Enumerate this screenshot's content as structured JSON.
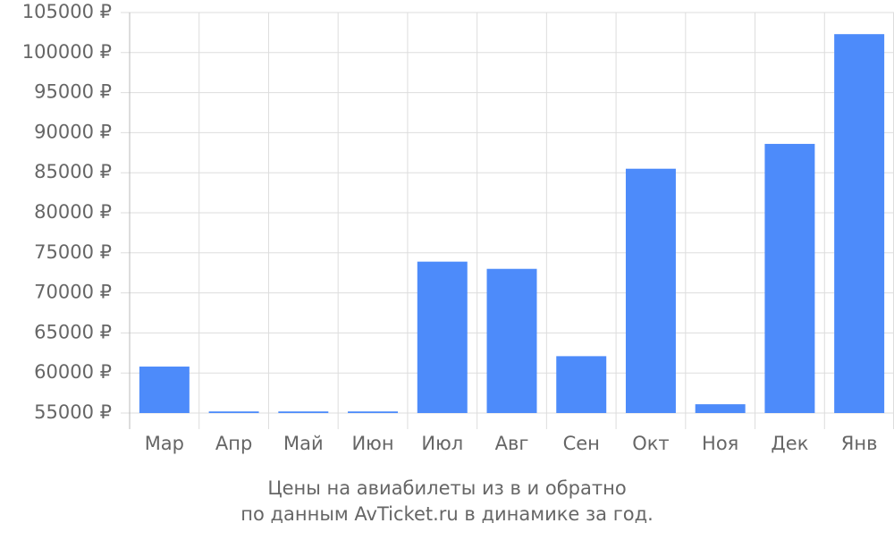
{
  "chart_data": {
    "type": "bar",
    "title": "Цены на авиабилеты из  в  и обратно",
    "subtitle": "по данным AvTicket.ru в динамике за год.",
    "categories": [
      "Мар",
      "Апр",
      "Май",
      "Июн",
      "Июл",
      "Авг",
      "Сен",
      "Окт",
      "Ноя",
      "Дек",
      "Янв"
    ],
    "values": [
      60800,
      55200,
      55200,
      55200,
      73900,
      73000,
      62100,
      85500,
      56100,
      88600,
      102300
    ],
    "color": "#4d8bfa",
    "ylim": [
      55000,
      105000
    ],
    "yticks": [
      {
        "value": 55000,
        "label": "55000 ₽"
      },
      {
        "value": 60000,
        "label": "60000 ₽"
      },
      {
        "value": 65000,
        "label": "65000 ₽"
      },
      {
        "value": 70000,
        "label": "70000 ₽"
      },
      {
        "value": 75000,
        "label": "75000 ₽"
      },
      {
        "value": 80000,
        "label": "80000 ₽"
      },
      {
        "value": 85000,
        "label": "85000 ₽"
      },
      {
        "value": 90000,
        "label": "90000 ₽"
      },
      {
        "value": 95000,
        "label": "95000 ₽"
      },
      {
        "value": 100000,
        "label": "100000 ₽"
      },
      {
        "value": 105000,
        "label": "105000 ₽"
      }
    ],
    "grid": true
  }
}
